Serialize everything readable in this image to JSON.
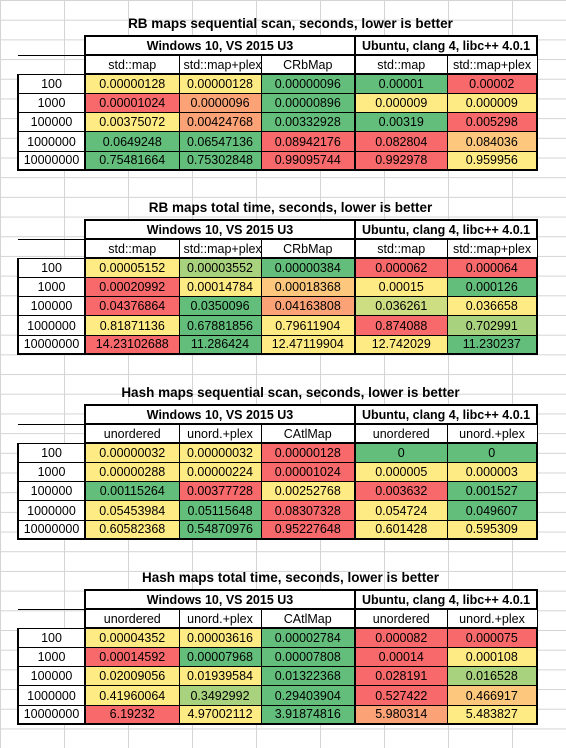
{
  "colors": {
    "green": "#63be7b",
    "light_green": "#a9d27f",
    "yellow_green": "#cddd82",
    "yellow": "#ffeb84",
    "light_orange": "#fdc87d",
    "orange": "#fba276",
    "red": "#f8696b"
  },
  "tables": [
    {
      "title": "RB maps sequential scan, seconds, lower is better",
      "group_left": "Windows 10, VS 2015 U3",
      "group_right": "Ubuntu, clang 4, libc++ 4.0.1",
      "columns": [
        "std::map",
        "std::map+plex",
        "CRbMap",
        "std::map",
        "std::map+plex"
      ],
      "rows": [
        {
          "label": "100",
          "values": [
            "0.00000128",
            "0.00000128",
            "0.00000096",
            "0.00001",
            "0.00002"
          ],
          "colors": [
            "#ffeb84",
            "#ffeb84",
            "#63be7b",
            "#63be7b",
            "#f8696b"
          ]
        },
        {
          "label": "1000",
          "values": [
            "0.00001024",
            "0.0000096",
            "0.00000896",
            "0.000009",
            "0.000009"
          ],
          "colors": [
            "#f8696b",
            "#fba276",
            "#63be7b",
            "#ffeb84",
            "#ffeb84"
          ]
        },
        {
          "label": "100000",
          "values": [
            "0.00375072",
            "0.00424768",
            "0.00332928",
            "0.00319",
            "0.005298"
          ],
          "colors": [
            "#ffeb84",
            "#fba276",
            "#63be7b",
            "#63be7b",
            "#f8696b"
          ]
        },
        {
          "label": "1000000",
          "values": [
            "0.0649248",
            "0.06547136",
            "0.08942176",
            "0.082804",
            "0.084036"
          ],
          "colors": [
            "#63be7b",
            "#63be7b",
            "#f8696b",
            "#f8696b",
            "#fdc87d"
          ]
        },
        {
          "label": "10000000",
          "values": [
            "0.75481664",
            "0.75302848",
            "0.99095744",
            "0.992978",
            "0.959956"
          ],
          "colors": [
            "#63be7b",
            "#63be7b",
            "#f8696b",
            "#f8696b",
            "#ffeb84"
          ]
        }
      ]
    },
    {
      "title": "RB maps total time, seconds, lower is better",
      "group_left": "Windows 10, VS 2015 U3",
      "group_right": "Ubuntu, clang 4, libc++ 4.0.1",
      "columns": [
        "std::map",
        "std::map+plex",
        "CRbMap",
        "std::map",
        "std::map+plex"
      ],
      "rows": [
        {
          "label": "100",
          "values": [
            "0.00005152",
            "0.00003552",
            "0.00000384",
            "0.000062",
            "0.000064"
          ],
          "colors": [
            "#ffeb84",
            "#a9d27f",
            "#63be7b",
            "#f8696b",
            "#f8696b"
          ]
        },
        {
          "label": "1000",
          "values": [
            "0.00020992",
            "0.00014784",
            "0.00018368",
            "0.00015",
            "0.000126"
          ],
          "colors": [
            "#f8696b",
            "#ffeb84",
            "#fdc87d",
            "#ffeb84",
            "#63be7b"
          ]
        },
        {
          "label": "100000",
          "values": [
            "0.04376864",
            "0.0350096",
            "0.04163808",
            "0.036261",
            "0.036658"
          ],
          "colors": [
            "#f8696b",
            "#63be7b",
            "#fba276",
            "#cddd82",
            "#ffeb84"
          ]
        },
        {
          "label": "1000000",
          "values": [
            "0.81871136",
            "0.67881856",
            "0.79611904",
            "0.874088",
            "0.702991"
          ],
          "colors": [
            "#ffeb84",
            "#63be7b",
            "#ffeb84",
            "#f8696b",
            "#a9d27f"
          ]
        },
        {
          "label": "10000000",
          "values": [
            "14.23102688",
            "11.286424",
            "12.47119904",
            "12.742029",
            "11.230237"
          ],
          "colors": [
            "#f8696b",
            "#63be7b",
            "#ffeb84",
            "#ffeb84",
            "#63be7b"
          ]
        }
      ]
    },
    {
      "title": "Hash maps sequential scan, seconds, lower is better",
      "group_left": "Windows 10, VS 2015 U3",
      "group_right": "Ubuntu, clang 4, libc++ 4.0.1",
      "columns": [
        "unordered",
        "unord.+plex",
        "CAtlMap",
        "unordered",
        "unord.+plex"
      ],
      "rows": [
        {
          "label": "100",
          "values": [
            "0.00000032",
            "0.00000032",
            "0.00000128",
            "0",
            "0"
          ],
          "colors": [
            "#ffeb84",
            "#ffeb84",
            "#f8696b",
            "#63be7b",
            "#63be7b"
          ]
        },
        {
          "label": "1000",
          "values": [
            "0.00000288",
            "0.00000224",
            "0.00001024",
            "0.000005",
            "0.000003"
          ],
          "colors": [
            "#ffeb84",
            "#ffeb84",
            "#f8696b",
            "#ffeb84",
            "#ffeb84"
          ]
        },
        {
          "label": "100000",
          "values": [
            "0.00115264",
            "0.00377728",
            "0.00252768",
            "0.003632",
            "0.001527"
          ],
          "colors": [
            "#63be7b",
            "#f8696b",
            "#ffeb84",
            "#f8696b",
            "#63be7b"
          ]
        },
        {
          "label": "1000000",
          "values": [
            "0.05453984",
            "0.05115648",
            "0.08307328",
            "0.054724",
            "0.049607"
          ],
          "colors": [
            "#ffeb84",
            "#63be7b",
            "#f8696b",
            "#ffeb84",
            "#63be7b"
          ]
        },
        {
          "label": "10000000",
          "values": [
            "0.60582368",
            "0.54870976",
            "0.95227648",
            "0.601428",
            "0.595309"
          ],
          "colors": [
            "#ffeb84",
            "#63be7b",
            "#f8696b",
            "#ffeb84",
            "#ffeb84"
          ]
        }
      ]
    },
    {
      "title": "Hash maps total time, seconds, lower is better",
      "group_left": "Windows 10, VS 2015 U3",
      "group_right": "Ubuntu, clang 4, libc++ 4.0.1",
      "columns": [
        "unordered",
        "unord.+plex",
        "CAtlMap",
        "unordered",
        "unord.+plex"
      ],
      "rows": [
        {
          "label": "100",
          "values": [
            "0.00004352",
            "0.00003616",
            "0.00002784",
            "0.000082",
            "0.000075"
          ],
          "colors": [
            "#ffeb84",
            "#ffeb84",
            "#63be7b",
            "#f8696b",
            "#f8696b"
          ]
        },
        {
          "label": "1000",
          "values": [
            "0.00014592",
            "0.00007968",
            "0.00007808",
            "0.00014",
            "0.000108"
          ],
          "colors": [
            "#f8696b",
            "#63be7b",
            "#63be7b",
            "#f8696b",
            "#ffeb84"
          ]
        },
        {
          "label": "100000",
          "values": [
            "0.02009056",
            "0.01939584",
            "0.01322368",
            "0.028191",
            "0.016528"
          ],
          "colors": [
            "#ffeb84",
            "#ffeb84",
            "#63be7b",
            "#f8696b",
            "#a9d27f"
          ]
        },
        {
          "label": "1000000",
          "values": [
            "0.41960064",
            "0.3492992",
            "0.29403904",
            "0.527422",
            "0.466917"
          ],
          "colors": [
            "#ffeb84",
            "#a9d27f",
            "#63be7b",
            "#f8696b",
            "#fdc87d"
          ]
        },
        {
          "label": "10000000",
          "values": [
            "6.19232",
            "4.97002112",
            "3.91874816",
            "5.980314",
            "5.483827"
          ],
          "colors": [
            "#f8696b",
            "#ffeb84",
            "#63be7b",
            "#fba276",
            "#ffeb84"
          ]
        }
      ]
    }
  ]
}
